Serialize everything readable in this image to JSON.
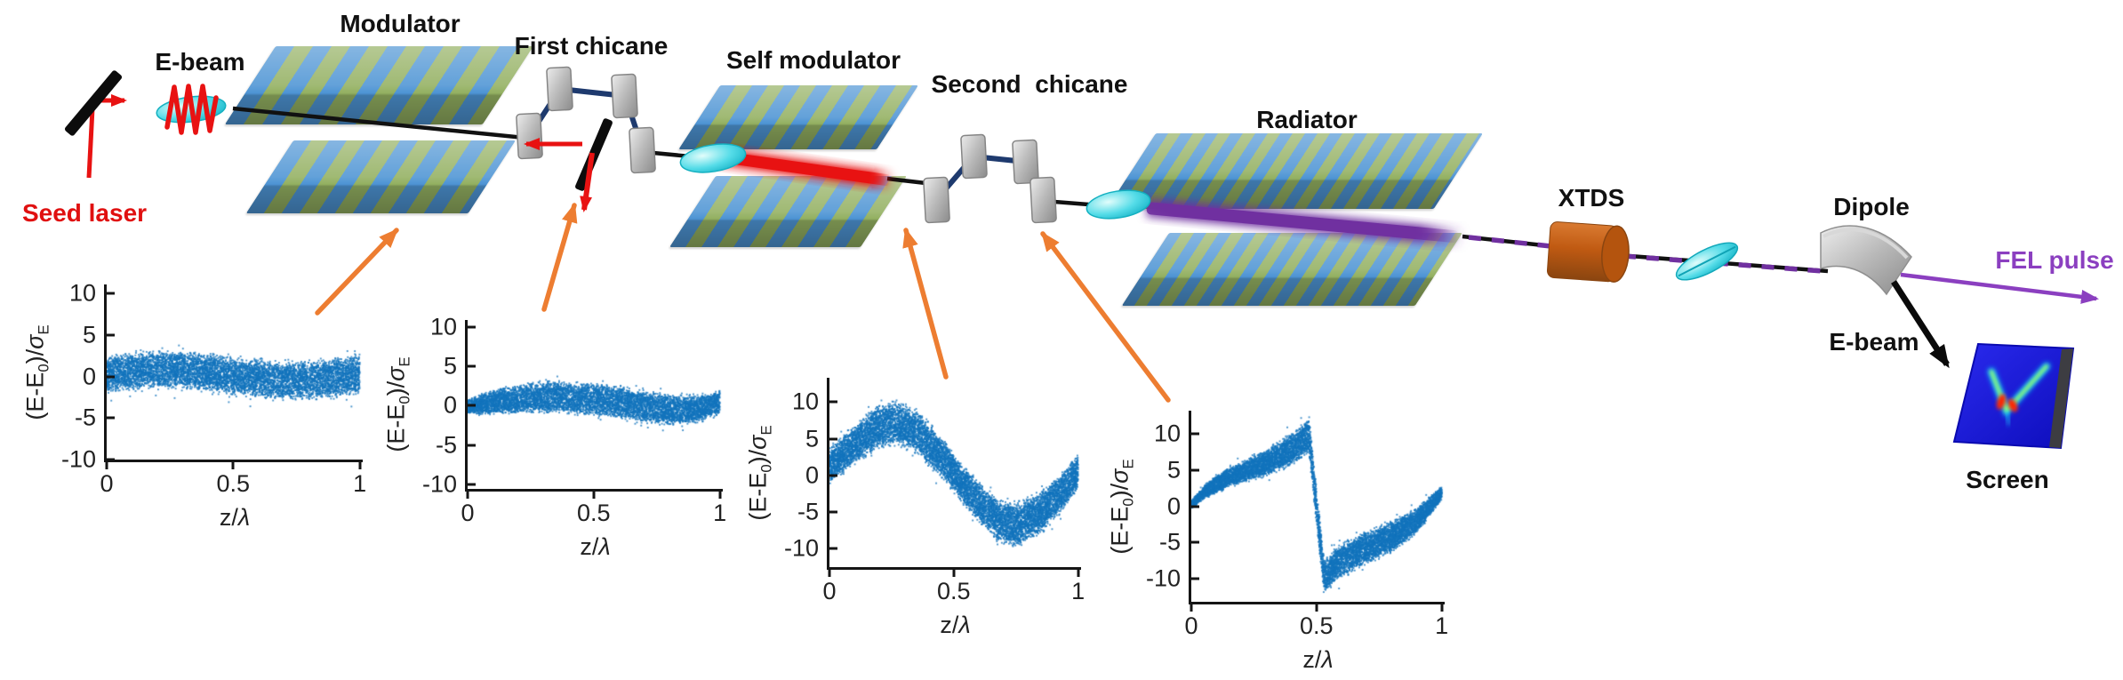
{
  "diagram": {
    "labels": {
      "seed_laser": "Seed laser",
      "ebeam_left": "E-beam",
      "modulator": "Modulator",
      "first_chicane": "First chicane",
      "self_modulator": "Self modulator",
      "second_chicane": "Second  chicane",
      "radiator": "Radiator",
      "xtds": "XTDS",
      "dipole": "Dipole",
      "fel_pulse": "FEL pulse",
      "ebeam_right": "E-beam",
      "screen": "Screen"
    },
    "colors": {
      "seed_laser_red": "#e01010",
      "orange_arrow": "#ED7D31",
      "beamline_black": "#111111",
      "chicane_link_navy": "#1e3a6e",
      "magnet_gray": "#b0b0b0",
      "undulator_blue": "#4d94d4",
      "undulator_green": "#93b061",
      "ebeam_cyan": "#4fd9e4",
      "seed_radiation_red": "#e81212",
      "fel_radiation_purple": "#7030A0",
      "fel_pulse_label_purple": "#8B3FC0",
      "xtds_orange": "#C55A11",
      "screen_blue": "#1c1cd8",
      "scatter_point_blue": "#1273bd"
    }
  },
  "chart_data": [
    {
      "id": "after-modulator",
      "beamline_position": "longitudinal phase space after the modulator (orange arrow target)",
      "type": "scatter",
      "title": "",
      "xlabel": "z/λ",
      "ylabel": "(E-E0)/σE",
      "xlabel_parts": [
        {
          "t": "z/"
        },
        {
          "t": "λ",
          "italic": true
        }
      ],
      "ylabel_parts": [
        {
          "t": "(E-E"
        },
        {
          "t": "0",
          "sub": true
        },
        {
          "t": ")/"
        },
        {
          "t": "σ",
          "italic": true
        },
        {
          "t": "E",
          "sub": true
        }
      ],
      "xlim": [
        0,
        1
      ],
      "xtick_vals": [
        0,
        0.5,
        1
      ],
      "xtick_labels": [
        "0",
        "0.5",
        "1"
      ],
      "ytick_vals": [
        -10,
        -5,
        0,
        5,
        10
      ],
      "ytick_labels": [
        "-10",
        "-5",
        "0",
        "5",
        "10"
      ],
      "xlim_box": [
        0,
        1.012
      ],
      "ylim_box": [
        -10,
        11.1
      ],
      "grid": false,
      "legend": null,
      "point_color": "#1273bd",
      "n_points": 7000,
      "seed": 11,
      "band_center": [
        [
          0,
          0.3
        ],
        [
          0.2,
          0.9
        ],
        [
          0.35,
          0.7
        ],
        [
          0.5,
          0.1
        ],
        [
          0.7,
          -0.5
        ],
        [
          0.85,
          -0.4
        ],
        [
          1,
          0.2
        ]
      ],
      "band_halfwidth": [
        [
          0,
          2.4
        ],
        [
          0.5,
          2.4
        ],
        [
          1,
          2.6
        ]
      ],
      "description": "flat noisy band ~±3 sigma with very weak sinusoidal energy modulation"
    },
    {
      "id": "after-first-chicane",
      "beamline_position": "longitudinal phase space after the first chicane (orange arrow target)",
      "type": "scatter",
      "title": "",
      "xlabel": "z/λ",
      "ylabel": "(E-E0)/σE",
      "xlabel_parts": [
        {
          "t": "z/"
        },
        {
          "t": "λ",
          "italic": true
        }
      ],
      "ylabel_parts": [
        {
          "t": "(E-E"
        },
        {
          "t": "0",
          "sub": true
        },
        {
          "t": ")/"
        },
        {
          "t": "σ",
          "italic": true
        },
        {
          "t": "E",
          "sub": true
        }
      ],
      "xlim": [
        0,
        1
      ],
      "xtick_vals": [
        0,
        0.5,
        1
      ],
      "xtick_labels": [
        "0",
        "0.5",
        "1"
      ],
      "ytick_vals": [
        -10,
        -5,
        0,
        5,
        10
      ],
      "ytick_labels": [
        "-10",
        "-5",
        "0",
        "5",
        "10"
      ],
      "xlim_box": [
        0,
        1.012
      ],
      "ylim_box": [
        -10.6,
        10.9
      ],
      "grid": false,
      "legend": null,
      "point_color": "#1273bd",
      "n_points": 7000,
      "seed": 22,
      "band_center": [
        [
          0,
          -0.1
        ],
        [
          0.15,
          0.7
        ],
        [
          0.3,
          1.1
        ],
        [
          0.5,
          0.8
        ],
        [
          0.65,
          0.1
        ],
        [
          0.8,
          -0.6
        ],
        [
          0.9,
          -0.5
        ],
        [
          1,
          0.4
        ]
      ],
      "band_halfwidth": [
        [
          0,
          0.9
        ],
        [
          0.1,
          1.7
        ],
        [
          0.3,
          2.1
        ],
        [
          0.6,
          2.2
        ],
        [
          0.8,
          2.1
        ],
        [
          1,
          1.6
        ]
      ],
      "description": "band pinched at z=0, gentle wave: up to ~+1 near z=0.3 and down to ~-0.6 near z=0.8"
    },
    {
      "id": "after-self-modulator",
      "beamline_position": "longitudinal phase space after the self modulator (orange arrow target)",
      "type": "scatter",
      "title": "",
      "xlabel": "z/λ",
      "ylabel": "(E-E0)/σE",
      "xlabel_parts": [
        {
          "t": "z/"
        },
        {
          "t": "λ",
          "italic": true
        }
      ],
      "ylabel_parts": [
        {
          "t": "(E-E"
        },
        {
          "t": "0",
          "sub": true
        },
        {
          "t": ")/"
        },
        {
          "t": "σ",
          "italic": true
        },
        {
          "t": "E",
          "sub": true
        }
      ],
      "xlim": [
        0,
        1
      ],
      "xtick_vals": [
        0,
        0.5,
        1
      ],
      "xtick_labels": [
        "0",
        "0.5",
        "1"
      ],
      "ytick_vals": [
        -10,
        -5,
        0,
        5,
        10
      ],
      "ytick_labels": [
        "-10",
        "-5",
        "0",
        "5",
        "10"
      ],
      "xlim_box": [
        0,
        1.012
      ],
      "ylim_box": [
        -12.5,
        13.3
      ],
      "grid": false,
      "legend": null,
      "point_color": "#1273bd",
      "n_points": 9000,
      "seed": 33,
      "band_center": [
        [
          0,
          1.2
        ],
        [
          0.1,
          4.2
        ],
        [
          0.2,
          6.8
        ],
        [
          0.27,
          7.2
        ],
        [
          0.35,
          6.0
        ],
        [
          0.45,
          2.5
        ],
        [
          0.5,
          0.3
        ],
        [
          0.58,
          -3.0
        ],
        [
          0.68,
          -6.2
        ],
        [
          0.76,
          -6.8
        ],
        [
          0.85,
          -5.0
        ],
        [
          0.93,
          -2.5
        ],
        [
          1,
          0.5
        ]
      ],
      "band_halfwidth": [
        [
          0,
          2.6
        ],
        [
          0.25,
          3.2
        ],
        [
          0.5,
          2.8
        ],
        [
          0.75,
          3.2
        ],
        [
          1,
          2.6
        ]
      ],
      "description": "strong sinusoidal energy modulation: peak ~+7 at z≈0.25, trough ~-7 at z≈0.75, amplitude ~±10 with spread"
    },
    {
      "id": "after-second-chicane",
      "beamline_position": "longitudinal phase space after the second chicane (orange arrow target)",
      "type": "scatter",
      "title": "",
      "xlabel": "z/λ",
      "ylabel": "(E-E0)/σE",
      "xlabel_parts": [
        {
          "t": "z/"
        },
        {
          "t": "λ",
          "italic": true
        }
      ],
      "ylabel_parts": [
        {
          "t": "(E-E"
        },
        {
          "t": "0",
          "sub": true
        },
        {
          "t": ")/"
        },
        {
          "t": "σ",
          "italic": true
        },
        {
          "t": "E",
          "sub": true
        }
      ],
      "xlim": [
        0,
        1
      ],
      "xtick_vals": [
        0,
        0.5,
        1
      ],
      "xtick_labels": [
        "0",
        "0.5",
        "1"
      ],
      "ytick_vals": [
        -10,
        -5,
        0,
        5,
        10
      ],
      "ytick_labels": [
        "-10",
        "-5",
        "0",
        "5",
        "10"
      ],
      "xlim_box": [
        0,
        1.012
      ],
      "ylim_box": [
        -13.2,
        13.2
      ],
      "grid": false,
      "legend": null,
      "point_color": "#1273bd",
      "n_points": 9000,
      "seed": 44,
      "band_center": [
        [
          0,
          0.2
        ],
        [
          0.06,
          2.2
        ],
        [
          0.15,
          4.0
        ],
        [
          0.3,
          6.0
        ],
        [
          0.42,
          8.2
        ],
        [
          0.47,
          9.8
        ],
        [
          0.5,
          0.0
        ],
        [
          0.53,
          -9.8
        ],
        [
          0.58,
          -8.0
        ],
        [
          0.68,
          -6.0
        ],
        [
          0.8,
          -4.2
        ],
        [
          0.9,
          -2.0
        ],
        [
          1,
          1.8
        ]
      ],
      "band_halfwidth": [
        [
          0,
          0.6
        ],
        [
          0.1,
          1.3
        ],
        [
          0.3,
          1.9
        ],
        [
          0.44,
          2.4
        ],
        [
          0.5,
          2.8
        ],
        [
          0.56,
          2.4
        ],
        [
          0.7,
          2.4
        ],
        [
          0.85,
          2.2
        ],
        [
          1,
          1.0
        ]
      ],
      "description": "sheared sawtooth (microbunched) distribution: rises from 0 to ~+10 at z≈0.47, vertical caustic at z≈0.5 spanning +12 to -11, then rises from ~-8 back to ~+2 at z=1"
    }
  ]
}
